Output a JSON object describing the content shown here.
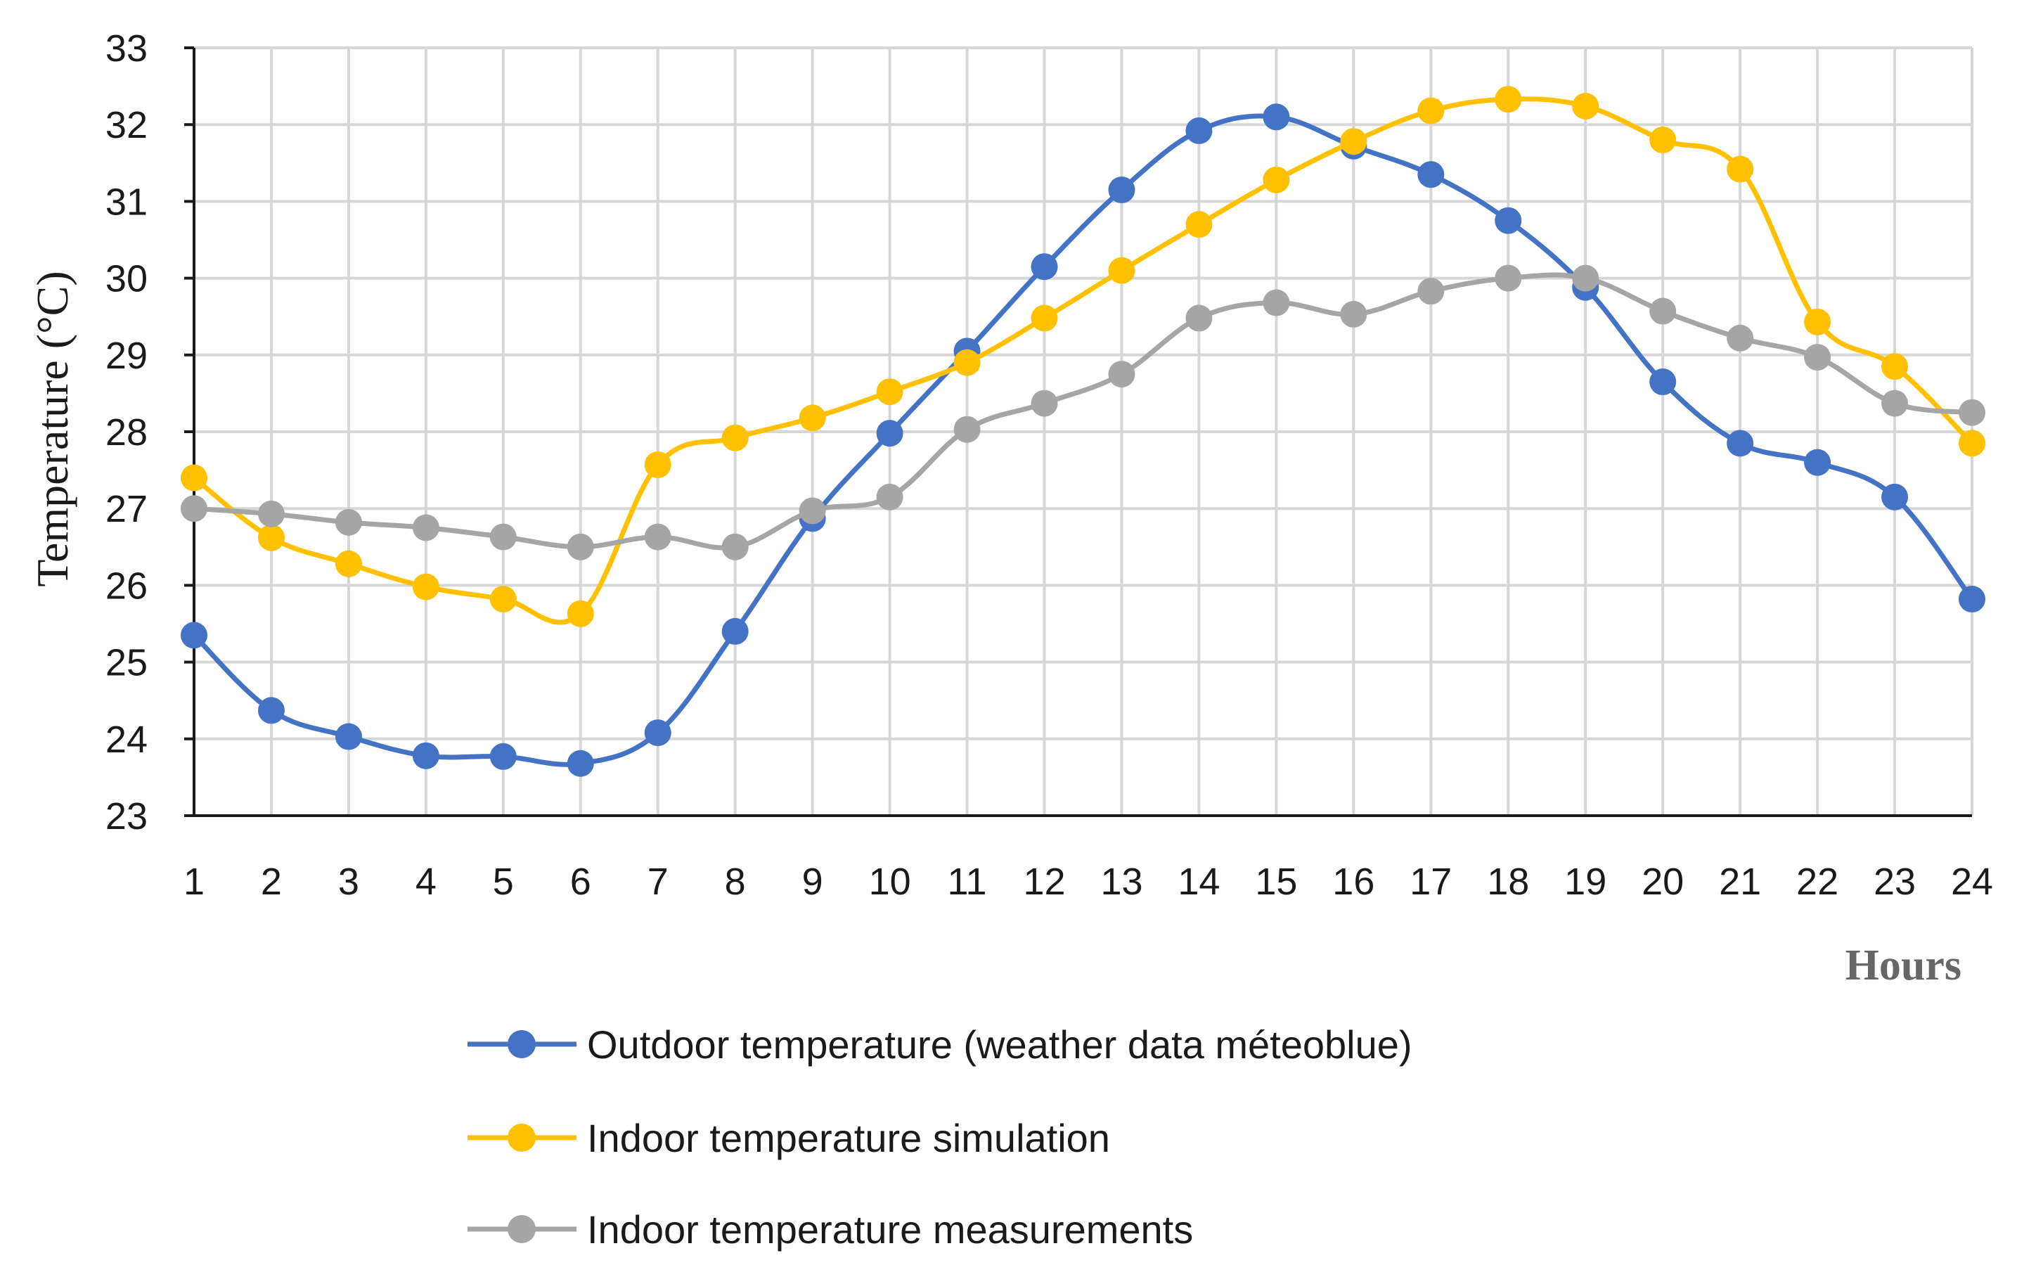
{
  "chart_data": {
    "type": "line",
    "title": "",
    "xlabel": "Hours",
    "ylabel": "Temperature (°C)",
    "categories": [
      "1",
      "2",
      "3",
      "4",
      "5",
      "6",
      "7",
      "8",
      "9",
      "10",
      "11",
      "12",
      "13",
      "14",
      "15",
      "16",
      "17",
      "18",
      "19",
      "20",
      "21",
      "22",
      "23",
      "24"
    ],
    "yticks": [
      "23",
      "24",
      "25",
      "26",
      "27",
      "28",
      "29",
      "30",
      "31",
      "32",
      "33"
    ],
    "ylim": [
      23,
      33
    ],
    "grid": true,
    "legend_position": "bottom",
    "series": [
      {
        "name": "Outdoor temperature (weather data méteoblue)",
        "color": "#4472C4",
        "values": [
          25.35,
          24.37,
          24.03,
          23.78,
          23.77,
          23.68,
          24.08,
          25.4,
          26.87,
          27.98,
          29.05,
          30.15,
          31.15,
          31.92,
          32.1,
          31.72,
          31.35,
          30.75,
          29.88,
          28.65,
          27.85,
          27.6,
          27.15,
          25.82
        ]
      },
      {
        "name": "Indoor temperature simulation",
        "color": "#FFC000",
        "values": [
          27.4,
          26.62,
          26.28,
          25.98,
          25.82,
          25.63,
          27.57,
          27.92,
          28.18,
          28.52,
          28.9,
          29.48,
          30.1,
          30.7,
          31.28,
          31.78,
          32.18,
          32.33,
          32.24,
          31.8,
          31.42,
          29.43,
          28.85,
          27.85
        ]
      },
      {
        "name": "Indoor temperature measurements",
        "color": "#A5A5A5",
        "values": [
          27.0,
          26.93,
          26.82,
          26.75,
          26.63,
          26.5,
          26.63,
          26.5,
          26.97,
          27.15,
          28.03,
          28.37,
          28.75,
          29.48,
          29.68,
          29.53,
          29.83,
          30.0,
          30.0,
          29.57,
          29.22,
          28.97,
          28.37,
          28.25
        ]
      }
    ]
  }
}
